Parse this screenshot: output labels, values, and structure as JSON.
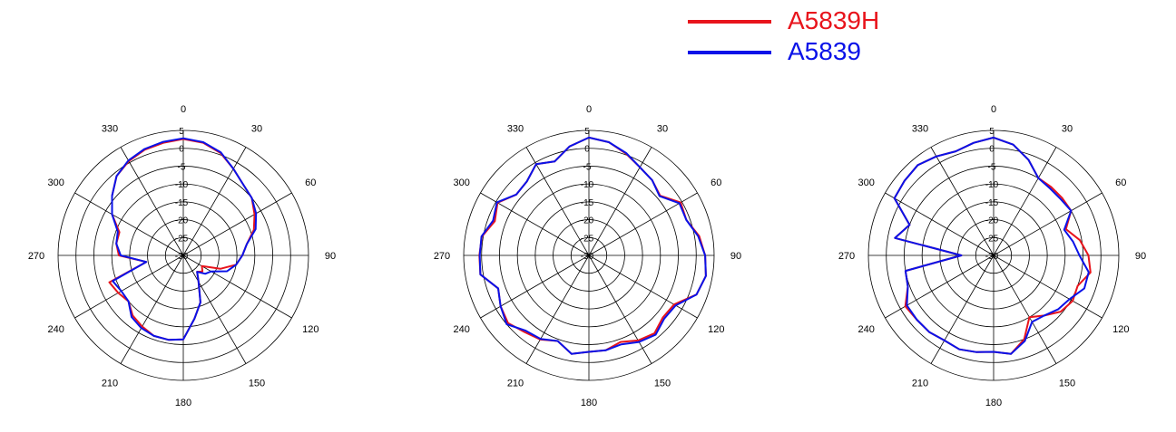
{
  "legend": [
    {
      "label": "A5839H",
      "color": "#e8141c"
    },
    {
      "label": "A5839",
      "color": "#0a12e8"
    }
  ],
  "chart_data": [
    {
      "type": "polar-line",
      "angle_ticks": [
        "0",
        "30",
        "60",
        "90",
        "120",
        "150",
        "180",
        "210",
        "240",
        "270",
        "300",
        "330"
      ],
      "radial_ticks": [
        "5",
        "0",
        "-5",
        "-10",
        "-15",
        "-20",
        "-25",
        "-30"
      ],
      "rlim": [
        -30,
        5
      ],
      "angle_step": 10,
      "series": [
        {
          "name": "A5839H",
          "color": "#e8141c",
          "values": [
            2.6,
            2.0,
            0.5,
            -2,
            -4,
            -5,
            -7,
            -9,
            -12,
            -13.5,
            -15,
            -19,
            -24,
            -23,
            -24,
            -21.5,
            -16,
            -12,
            -6.5,
            -6,
            -6,
            -7,
            -8,
            -10,
            -9,
            -8,
            -19.5,
            -12,
            -11,
            -11,
            -7,
            -4,
            -1,
            0.5,
            1.5,
            2.0
          ]
        },
        {
          "name": "A5839",
          "color": "#0a12e8",
          "values": [
            2.8,
            2.2,
            0.7,
            -2,
            -4,
            -5,
            -6.5,
            -8.5,
            -12,
            -13.5,
            -15,
            -17,
            -21,
            -22,
            -24,
            -21.5,
            -16,
            -12,
            -6.5,
            -6,
            -6,
            -6.5,
            -7.5,
            -10,
            -10,
            -9,
            -19.5,
            -12.5,
            -11,
            -10.5,
            -7,
            -4,
            -1,
            0.7,
            1.7,
            2.3
          ]
        }
      ]
    },
    {
      "type": "polar-line",
      "angle_ticks": [
        "0",
        "30",
        "60",
        "90",
        "120",
        "150",
        "180",
        "210",
        "240",
        "270",
        "300",
        "330"
      ],
      "radial_ticks": [
        "5",
        "0",
        "-5",
        "-10",
        "-15",
        "-20",
        "-25",
        "-30"
      ],
      "rlim": [
        -30,
        5
      ],
      "angle_step": 10,
      "series": [
        {
          "name": "A5839H",
          "color": "#e8141c",
          "values": [
            3.0,
            2.2,
            0.3,
            -1.5,
            -2.5,
            -4.0,
            -0.4,
            -1.0,
            1.3,
            2.5,
            3.2,
            2.0,
            -2.5,
            -3.0,
            -1.5,
            -2.5,
            -4.2,
            -3.0,
            -3.0,
            -2.0,
            -4.5,
            -2.8,
            -2.0,
            -0.5,
            -1.5,
            -3.0,
            0.8,
            0.6,
            0.4,
            -2.0,
            -0.5,
            -3.5,
            -3.0,
            -0.5,
            -2.0,
            1.0
          ]
        },
        {
          "name": "A5839",
          "color": "#0a12e8",
          "values": [
            3.0,
            2.2,
            0.5,
            -1.5,
            -2.5,
            -4.2,
            -0.8,
            -1.0,
            1.0,
            2.5,
            3.2,
            2.0,
            -2.0,
            -2.5,
            -1.0,
            -2.0,
            -3.5,
            -3.0,
            -3.0,
            -2.0,
            -4.5,
            -3.0,
            -2.5,
            0.0,
            -1.5,
            -3.0,
            0.8,
            0.5,
            0.5,
            -1.5,
            -0.3,
            -3.5,
            -3.0,
            -0.5,
            -2.0,
            1.0
          ]
        }
      ]
    },
    {
      "type": "polar-line",
      "angle_ticks": [
        "0",
        "30",
        "60",
        "90",
        "120",
        "150",
        "180",
        "210",
        "240",
        "270",
        "300",
        "330"
      ],
      "radial_ticks": [
        "5",
        "0",
        "-5",
        "-10",
        "-15",
        "-20",
        "-25",
        "-30"
      ],
      "rlim": [
        -30,
        5
      ],
      "angle_step": 10,
      "series": [
        {
          "name": "A5839H",
          "color": "#e8141c",
          "values": [
            3.0,
            1.5,
            -1.5,
            -5.0,
            -5.0,
            -5.0,
            -5.0,
            -8.5,
            -5.5,
            -3.5,
            -2.5,
            -5.0,
            -4.5,
            -5.5,
            -8.0,
            -10.0,
            -5.0,
            -2.0,
            -3.0,
            -2.5,
            -2.0,
            -2.5,
            -2.0,
            -2.0,
            -1.5,
            -4.5,
            -5.0,
            -21.0,
            -2.0,
            -5.0,
            2.0,
            2.5,
            3.0,
            2.0,
            1.0,
            2.0
          ]
        },
        {
          "name": "A5839",
          "color": "#0a12e8",
          "values": [
            3.0,
            1.5,
            -1.5,
            -5.0,
            -5.5,
            -5.5,
            -5.0,
            -9.0,
            -7.5,
            -6.0,
            -3.0,
            -3.0,
            -5.5,
            -6.5,
            -8.0,
            -8.5,
            -4.5,
            -2.0,
            -3.0,
            -2.5,
            -2.0,
            -2.5,
            -2.0,
            -2.0,
            -2.0,
            -4.5,
            -5.0,
            -21.0,
            -2.0,
            -5.0,
            2.0,
            2.5,
            3.0,
            2.0,
            1.0,
            2.0
          ]
        }
      ]
    }
  ]
}
